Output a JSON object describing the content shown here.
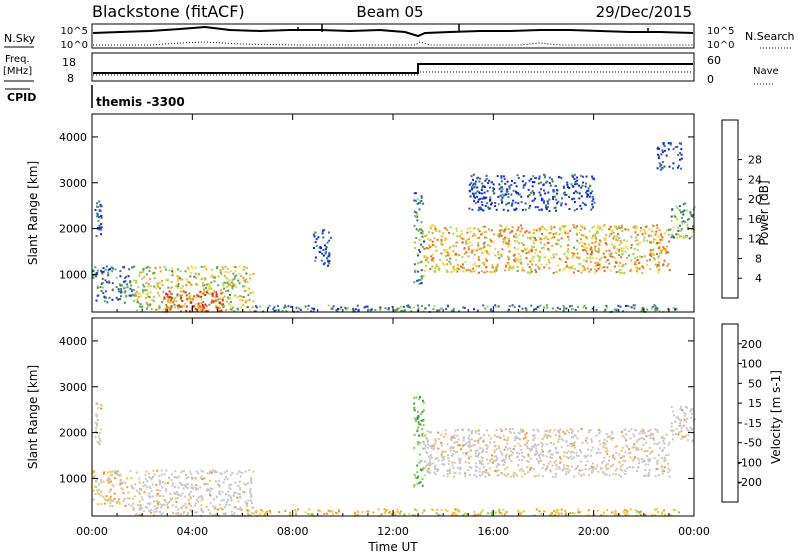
{
  "header": {
    "station": "Blackstone (fitACF)",
    "beam": "Beam 05",
    "date": "29/Dec/2015"
  },
  "aux": {
    "nsky_label": "N.Sky",
    "nsearch_label": "N.Search",
    "left_ticks": [
      "10^5",
      "10^0"
    ],
    "right_ticks": [
      "10^5",
      "10^0"
    ],
    "freq_label_1": "Freq.",
    "freq_label_2": "[MHz]",
    "freq_ticks": [
      "18",
      "8"
    ],
    "nave_label": "Nave",
    "nave_ticks": [
      "60",
      "0"
    ],
    "cpid_label": "CPID",
    "cpid_value": "themis -3300"
  },
  "chart_data": [
    {
      "type": "heatmap",
      "title": "",
      "xlabel": "",
      "ylabel": "Slant Range [km]",
      "xlim": [
        0,
        24
      ],
      "ylim": [
        180,
        4500
      ],
      "x_ticks": [
        0,
        4,
        8,
        12,
        16,
        20,
        24
      ],
      "y_ticks": [
        1000,
        2000,
        3000,
        4000
      ],
      "colorbar": {
        "label": "Power [dB]",
        "ticks": [
          "4",
          "8",
          "12",
          "16",
          "20",
          "24",
          "28"
        ],
        "colors": [
          "#0a28f0",
          "#2b55c2",
          "#3c7d64",
          "#5aa85a",
          "#a8d64a",
          "#f0dc32",
          "#f5a028",
          "#f56414",
          "#f01e0a"
        ]
      },
      "regions": [
        {
          "t": [
            0.1,
            0.35
          ],
          "r": [
            1750,
            2700
          ],
          "level": 0.2
        },
        {
          "t": [
            0.0,
            1.6
          ],
          "r": [
            400,
            1200
          ],
          "level": 0.25
        },
        {
          "t": [
            1.6,
            6.4
          ],
          "r": [
            200,
            1200
          ],
          "level": 0.55
        },
        {
          "t": [
            2.8,
            5.2
          ],
          "r": [
            200,
            650
          ],
          "level": 0.95
        },
        {
          "t": [
            8.8,
            9.5
          ],
          "r": [
            1200,
            2000
          ],
          "level": 0.15
        },
        {
          "t": [
            12.8,
            13.2
          ],
          "r": [
            800,
            2800
          ],
          "level": 0.3
        },
        {
          "t": [
            13.2,
            23.0
          ],
          "r": [
            1050,
            2100
          ],
          "level": 0.65
        },
        {
          "t": [
            15.0,
            20.0
          ],
          "r": [
            2400,
            3200
          ],
          "level": 0.12
        },
        {
          "t": [
            23.0,
            24.0
          ],
          "r": [
            1800,
            2600
          ],
          "level": 0.35
        },
        {
          "t": [
            22.5,
            23.5
          ],
          "r": [
            3300,
            3900
          ],
          "level": 0.12
        },
        {
          "t": [
            6.0,
            23.5
          ],
          "r": [
            200,
            350
          ],
          "level": 0.3
        }
      ]
    },
    {
      "type": "heatmap",
      "title": "",
      "xlabel": "Time UT",
      "ylabel": "Slant Range [km]",
      "xlim": [
        0,
        24
      ],
      "ylim": [
        180,
        4500
      ],
      "x_ticks": [
        0,
        4,
        8,
        12,
        16,
        20,
        24
      ],
      "x_tick_labels": [
        "00:00",
        "04:00",
        "08:00",
        "12:00",
        "16:00",
        "20:00",
        "00:00"
      ],
      "y_ticks": [
        1000,
        2000,
        3000,
        4000
      ],
      "colorbar": {
        "label": "Velocity [m s-1]",
        "ticks": [
          "200",
          "100",
          "50",
          "15",
          "-15",
          "-50",
          "-100",
          "-200"
        ],
        "colors": [
          "#2a3cb4",
          "#3c6e5a",
          "#3c9a3c",
          "#7cd24a",
          "#c8c8c8",
          "#f5c83c",
          "#f5961e",
          "#f55a14",
          "#e61414"
        ]
      },
      "regions": [
        {
          "t": [
            0.1,
            0.35
          ],
          "r": [
            1750,
            2700
          ],
          "tone": "ground"
        },
        {
          "t": [
            0.0,
            1.6
          ],
          "r": [
            400,
            1200
          ],
          "tone": "mixed"
        },
        {
          "t": [
            1.6,
            6.4
          ],
          "r": [
            200,
            1200
          ],
          "tone": "ground"
        },
        {
          "t": [
            12.8,
            13.2
          ],
          "r": [
            800,
            2800
          ],
          "tone": "green"
        },
        {
          "t": [
            13.2,
            23.0
          ],
          "r": [
            1050,
            2100
          ],
          "tone": "ground"
        },
        {
          "t": [
            23.0,
            24.0
          ],
          "r": [
            1800,
            2600
          ],
          "tone": "ground"
        },
        {
          "t": [
            6.0,
            23.5
          ],
          "r": [
            200,
            350
          ],
          "tone": "orange"
        }
      ]
    }
  ]
}
